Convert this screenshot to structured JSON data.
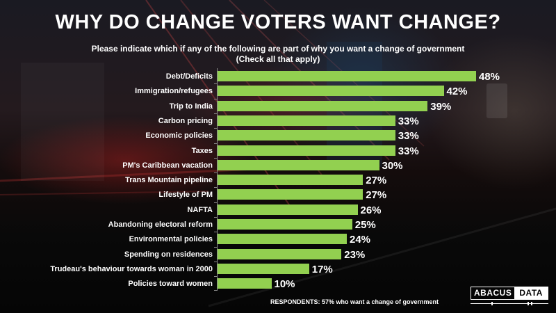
{
  "title": "WHY DO CHANGE VOTERS WANT CHANGE?",
  "subtitle_line1": "Please indicate which if any of the following are part of why you want a change of government",
  "subtitle_line2": "(Check all that apply)",
  "footer": "RESPONDENTS:  57% who want a change of government",
  "logo": {
    "left": "ABACUS",
    "right": "DATA"
  },
  "colors": {
    "bar": "#92d050",
    "text": "#ffffff",
    "axis": "#8a8a8a"
  },
  "chart_data": {
    "type": "bar",
    "orientation": "horizontal",
    "title": "WHY DO CHANGE VOTERS WANT CHANGE?",
    "subtitle": "Please indicate which if any of the following are part of why you want a change of government (Check all that apply)",
    "xlabel": "",
    "ylabel": "",
    "unit": "%",
    "xlim": [
      0,
      50
    ],
    "grid": false,
    "legend": "none",
    "categories": [
      "Debt/Deficits",
      "Immigration/refugees",
      "Trip to India",
      "Carbon pricing",
      "Economic policies",
      "Taxes",
      "PM's Caribbean vacation",
      "Trans Mountain pipeline",
      "Lifestyle of PM",
      "NAFTA",
      "Abandoning electoral reform",
      "Environmental policies",
      "Spending on residences",
      "Trudeau's behaviour towards woman in 2000",
      "Policies toward women"
    ],
    "values": [
      48,
      42,
      39,
      33,
      33,
      33,
      30,
      27,
      27,
      26,
      25,
      24,
      23,
      17,
      10
    ],
    "value_labels": [
      "48%",
      "42%",
      "39%",
      "33%",
      "33%",
      "33%",
      "30%",
      "27%",
      "27%",
      "26%",
      "25%",
      "24%",
      "23%",
      "17%",
      "10%"
    ],
    "note": "RESPONDENTS: 57% who want a change of government"
  }
}
